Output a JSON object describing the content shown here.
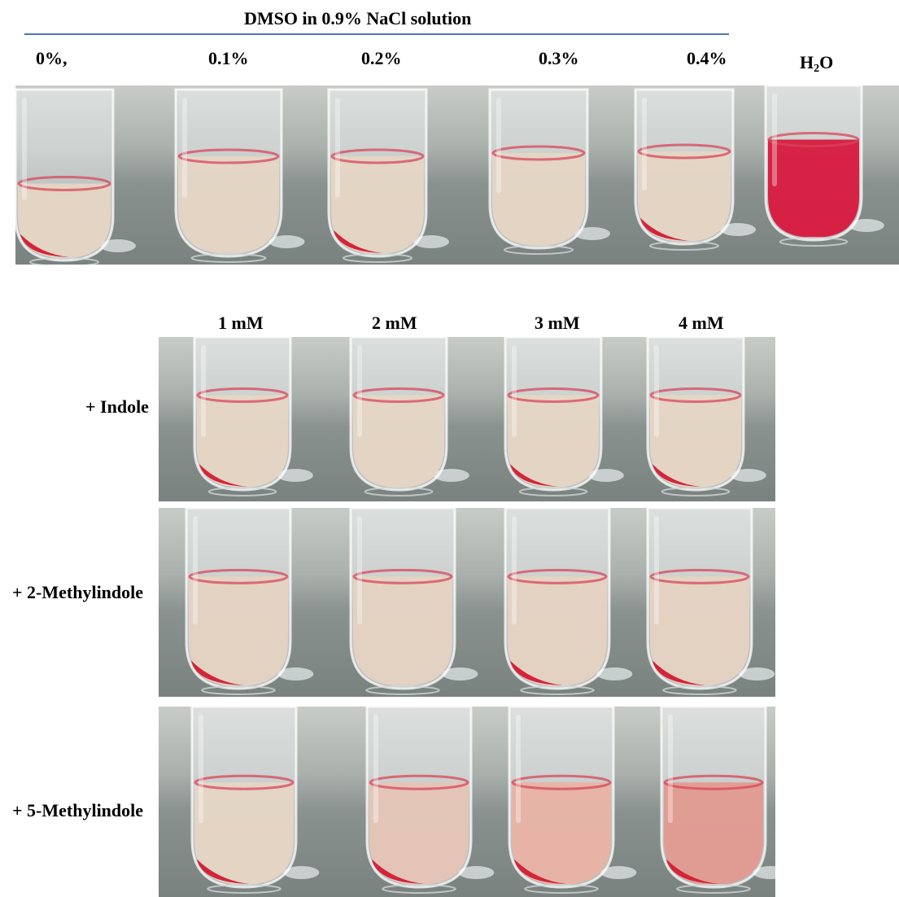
{
  "header": {
    "title": "DMSO in 0.9% NaCl solution",
    "concentrations": [
      "0%,",
      "0.1%",
      "0.2%",
      "0.3%",
      "0.4%"
    ],
    "h2o_main": "H",
    "h2o_sub": "2",
    "h2o_tail": "O"
  },
  "dose_labels": [
    "1 mM",
    "2 mM",
    "3 mM",
    "4 mM"
  ],
  "rows": [
    "+ Indole",
    "+ 2-Methylindole",
    "+ 5-Methylindole"
  ],
  "colors": {
    "rule": "#4a74c4",
    "liquid_pale": "#e6d6c4",
    "liquid_pink": "#e9b2a4",
    "liquid_red": "#d8143a",
    "rbc_pellet": "#d42438"
  }
}
